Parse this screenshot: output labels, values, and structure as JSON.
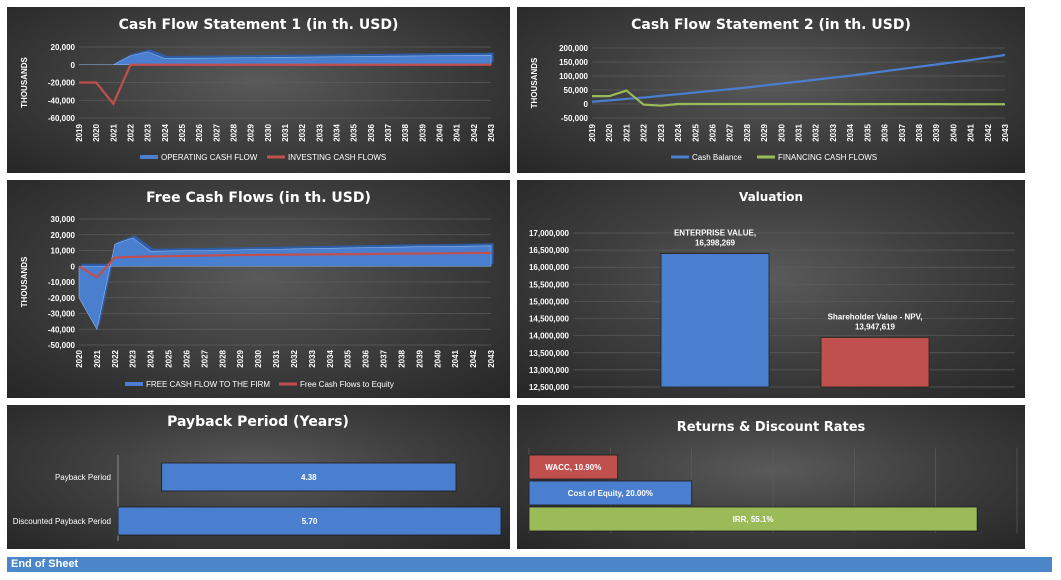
{
  "footer": {
    "label": "End of Sheet"
  },
  "chart_data": [
    {
      "id": "cfs1",
      "type": "line",
      "title": "Cash Flow Statement 1 (in th. USD)",
      "ylabel": "THOUSANDS",
      "ylim": [
        -60000,
        20000
      ],
      "yticks": [
        20000,
        0,
        -20000,
        -40000,
        -60000
      ],
      "ytick_labels": [
        "20,000",
        "0",
        "-20,000",
        "-40,000",
        "-60,000"
      ],
      "categories": [
        "2019",
        "2020",
        "2021",
        "2022",
        "2023",
        "2024",
        "2025",
        "2026",
        "2027",
        "2028",
        "2029",
        "2030",
        "2031",
        "2032",
        "2033",
        "2034",
        "2035",
        "2036",
        "2037",
        "2038",
        "2039",
        "2040",
        "2041",
        "2042",
        "2043"
      ],
      "legend_position": "bottom",
      "series": [
        {
          "name": "OPERATING CASH FLOW",
          "style": "area3d",
          "color": "#4a7fd0",
          "values": [
            0,
            0,
            0,
            10000,
            14500,
            7000,
            7200,
            7400,
            7600,
            7800,
            8000,
            8200,
            8400,
            8600,
            8800,
            9000,
            9200,
            9400,
            9600,
            9800,
            10000,
            10200,
            10400,
            10600,
            10800
          ]
        },
        {
          "name": "INVESTING CASH FLOWS",
          "style": "line",
          "color": "#c0504d",
          "values": [
            -20000,
            -20000,
            -44000,
            0,
            0,
            0,
            0,
            0,
            0,
            0,
            0,
            0,
            0,
            0,
            0,
            0,
            0,
            0,
            0,
            0,
            0,
            0,
            0,
            0,
            0
          ]
        }
      ]
    },
    {
      "id": "cfs2",
      "type": "line",
      "title": "Cash Flow Statement 2 (in th. USD)",
      "ylabel": "THOUSANDS",
      "ylim": [
        -50000,
        200000
      ],
      "yticks": [
        200000,
        150000,
        100000,
        50000,
        0,
        -50000
      ],
      "ytick_labels": [
        "200,000",
        "150,000",
        "100,000",
        "50,000",
        "0",
        "-50,000"
      ],
      "categories": [
        "2019",
        "2020",
        "2021",
        "2022",
        "2023",
        "2024",
        "2025",
        "2026",
        "2027",
        "2028",
        "2029",
        "2030",
        "2031",
        "2032",
        "2033",
        "2034",
        "2035",
        "2036",
        "2037",
        "2038",
        "2039",
        "2040",
        "2041",
        "2042",
        "2043"
      ],
      "legend_position": "bottom",
      "series": [
        {
          "name": "Cash Balance",
          "style": "line",
          "color": "#4a7fd0",
          "values": [
            8000,
            13000,
            18000,
            23000,
            29000,
            35000,
            41000,
            47000,
            53000,
            59000,
            66000,
            73000,
            80000,
            87000,
            94000,
            101000,
            109000,
            117000,
            125000,
            133000,
            141000,
            149000,
            157000,
            166000,
            175000
          ]
        },
        {
          "name": "FINANCING CASH FLOWS",
          "style": "line",
          "color": "#9bbb59",
          "values": [
            28000,
            28000,
            48000,
            -2000,
            -6000,
            0,
            0,
            0,
            0,
            0,
            0,
            0,
            0,
            0,
            0,
            -500,
            -500,
            -500,
            -500,
            -500,
            -500,
            -1000,
            -1000,
            -1000,
            -1000
          ]
        }
      ]
    },
    {
      "id": "fcf",
      "type": "line",
      "title": "Free Cash Flows (in th. USD)",
      "ylabel": "THOUSANDS",
      "ylim": [
        -50000,
        30000
      ],
      "yticks": [
        30000,
        20000,
        10000,
        0,
        -10000,
        -20000,
        -30000,
        -40000,
        -50000
      ],
      "ytick_labels": [
        "30,000",
        "20,000",
        "10,000",
        "0",
        "-10,000",
        "-20,000",
        "-30,000",
        "-40,000",
        "-50,000"
      ],
      "categories": [
        "2020",
        "2021",
        "2022",
        "2023",
        "2024",
        "2025",
        "2026",
        "2027",
        "2028",
        "2029",
        "2030",
        "2031",
        "2032",
        "2033",
        "2034",
        "2035",
        "2036",
        "2037",
        "2038",
        "2039",
        "2040",
        "2041",
        "2042",
        "2043"
      ],
      "legend_position": "bottom",
      "series": [
        {
          "name": "FREE CASH FLOW TO THE FIRM",
          "style": "area3d",
          "color": "#4a7fd0",
          "values": [
            -20000,
            -40000,
            14000,
            18000,
            9500,
            9700,
            9900,
            10000,
            10200,
            10400,
            10600,
            10800,
            11000,
            11200,
            11400,
            11600,
            11800,
            12000,
            12200,
            12400,
            12500,
            12600,
            12800,
            13000
          ]
        },
        {
          "name": "Free Cash Flows to Equity",
          "style": "line",
          "color": "#c0504d",
          "values": [
            0,
            -7000,
            5500,
            6000,
            6200,
            6400,
            6600,
            6800,
            7000,
            7100,
            7200,
            7300,
            7400,
            7500,
            7600,
            7700,
            7800,
            7900,
            8000,
            8100,
            8200,
            8300,
            8400,
            8500
          ]
        }
      ]
    },
    {
      "id": "valuation",
      "type": "bar",
      "title": "Valuation",
      "ylim": [
        12500000,
        17000000
      ],
      "yticks": [
        17000000,
        16500000,
        16000000,
        15500000,
        15000000,
        14500000,
        14000000,
        13500000,
        13000000,
        12500000
      ],
      "ytick_labels": [
        "17,000,000",
        "16,500,000",
        "16,000,000",
        "15,500,000",
        "15,000,000",
        "14,500,000",
        "14,000,000",
        "13,500,000",
        "13,000,000",
        "12,500,000"
      ],
      "bars": [
        {
          "name": "ENTERPRISE VALUE,",
          "value": 16398269,
          "value_label": "16,398,269",
          "color": "#4a7fd0"
        },
        {
          "name": "Shareholder Value - NPV,",
          "value": 13947619,
          "value_label": "13,947,619",
          "color": "#c0504d"
        }
      ]
    },
    {
      "id": "payback",
      "type": "bar",
      "orientation": "horizontal",
      "title": "Payback Period (Years)",
      "xlim": [
        0,
        5.7
      ],
      "bars": [
        {
          "category": "Payback Period",
          "start": 0.65,
          "value": 4.38,
          "value_label": "4.38",
          "color": "#4a7fd0"
        },
        {
          "category": "Discounted Payback Period",
          "start": 0,
          "value": 5.7,
          "value_label": "5.70",
          "color": "#4a7fd0"
        }
      ]
    },
    {
      "id": "returns",
      "type": "bar",
      "orientation": "horizontal",
      "title": "Returns & Discount Rates",
      "xlim": [
        0,
        60
      ],
      "bars": [
        {
          "name": "WACC",
          "value": 10.9,
          "label": "WACC, 10.90%",
          "color": "#c0504d"
        },
        {
          "name": "Cost of Equity",
          "value": 20.0,
          "label": "Cost of Equity, 20.00%",
          "color": "#4a7fd0"
        },
        {
          "name": "IRR",
          "value": 55.1,
          "label": "IRR, 55.1%",
          "color": "#9bbb59"
        }
      ]
    }
  ]
}
